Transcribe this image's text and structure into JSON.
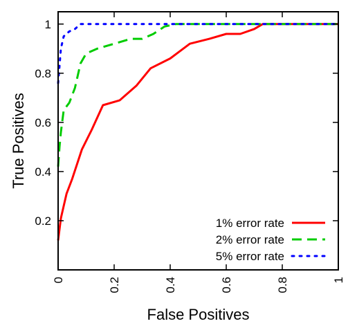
{
  "chart_data": {
    "type": "line",
    "title": "",
    "xlabel": "False Positives",
    "ylabel": "True Positives",
    "xlim": [
      0,
      1
    ],
    "ylim": [
      0,
      1.05
    ],
    "x_ticks": [
      0,
      0.2,
      0.4,
      0.6,
      0.8,
      1
    ],
    "x_tick_labels": [
      "0",
      "0.2",
      "0.4",
      "0.6",
      "0.8",
      "1"
    ],
    "y_ticks": [
      0.2,
      0.4,
      0.6,
      0.8,
      1
    ],
    "y_tick_labels": [
      "0.2",
      "0.4",
      "0.6",
      "0.8",
      "1"
    ],
    "grid": false,
    "legend_position": "bottom-right",
    "series": [
      {
        "name": "1% error rate",
        "color": "#ff0000",
        "dash": "solid",
        "x": [
          0,
          0.01,
          0.02,
          0.03,
          0.05,
          0.085,
          0.12,
          0.16,
          0.22,
          0.28,
          0.33,
          0.4,
          0.47,
          0.54,
          0.6,
          0.65,
          0.7,
          0.73,
          0.8,
          0.9,
          1
        ],
        "y": [
          0.12,
          0.21,
          0.26,
          0.31,
          0.37,
          0.49,
          0.57,
          0.67,
          0.69,
          0.75,
          0.82,
          0.86,
          0.92,
          0.94,
          0.96,
          0.96,
          0.98,
          1,
          1,
          1,
          1
        ]
      },
      {
        "name": "2% error rate",
        "color": "#00cc00",
        "dash": "dashed",
        "x": [
          0,
          0.005,
          0.01,
          0.02,
          0.04,
          0.06,
          0.08,
          0.1,
          0.14,
          0.2,
          0.26,
          0.3,
          0.34,
          0.38,
          0.42,
          0.5,
          0.6,
          0.8,
          1
        ],
        "y": [
          0.42,
          0.5,
          0.56,
          0.65,
          0.68,
          0.74,
          0.84,
          0.88,
          0.9,
          0.92,
          0.94,
          0.94,
          0.96,
          0.99,
          1,
          1,
          1,
          1,
          1
        ]
      },
      {
        "name": "5% error rate",
        "color": "#0000ff",
        "dash": "dotted",
        "x": [
          0,
          0.005,
          0.01,
          0.02,
          0.04,
          0.06,
          0.08,
          0.12,
          0.2,
          0.4,
          0.6,
          0.8,
          1
        ],
        "y": [
          0.76,
          0.83,
          0.9,
          0.95,
          0.97,
          0.98,
          1,
          1,
          1,
          1,
          1,
          1,
          1
        ]
      }
    ]
  }
}
